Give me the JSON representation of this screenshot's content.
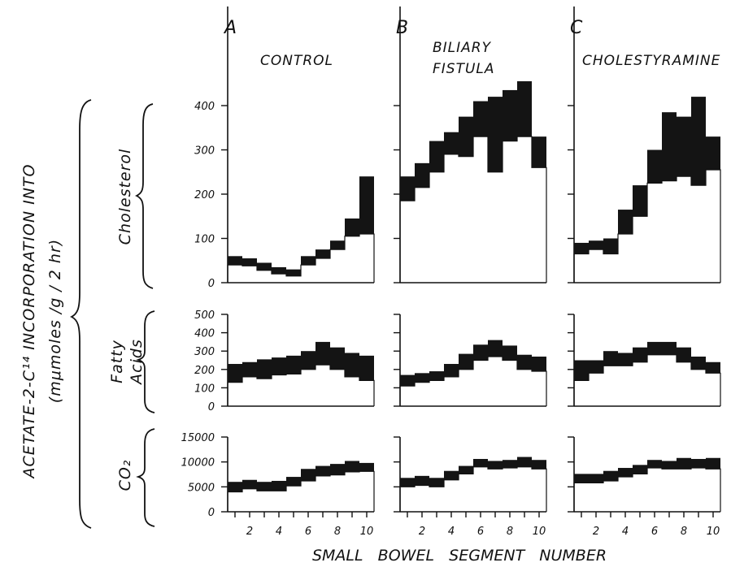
{
  "chart_data": [
    {
      "type": "area",
      "panel": "A",
      "row_label": "Cholesterol",
      "title": "CONTROL",
      "ylim": [
        0,
        400
      ],
      "yticks": [
        "0",
        "100",
        "200",
        "300",
        "400"
      ],
      "x": [
        1,
        2,
        3,
        4,
        5,
        6,
        7,
        8,
        9,
        10
      ],
      "lower": [
        40,
        38,
        28,
        20,
        15,
        40,
        55,
        75,
        105,
        110
      ],
      "upper": [
        60,
        55,
        45,
        35,
        30,
        60,
        75,
        95,
        145,
        240
      ]
    },
    {
      "type": "area",
      "panel": "B",
      "row_label": "Cholesterol",
      "title": "BILIARY FISTULA",
      "ylim": [
        0,
        400
      ],
      "x": [
        1,
        2,
        3,
        4,
        5,
        6,
        7,
        8,
        9,
        10
      ],
      "lower": [
        185,
        215,
        250,
        290,
        285,
        330,
        250,
        320,
        330,
        260
      ],
      "upper": [
        240,
        270,
        320,
        340,
        375,
        410,
        420,
        435,
        455,
        330
      ]
    },
    {
      "type": "area",
      "panel": "C",
      "row_label": "Cholesterol",
      "title": "CHOLESTYRAMINE",
      "ylim": [
        0,
        400
      ],
      "x": [
        1,
        2,
        3,
        4,
        5,
        6,
        7,
        8,
        9,
        10
      ],
      "lower": [
        65,
        75,
        65,
        110,
        150,
        225,
        230,
        240,
        220,
        255
      ],
      "upper": [
        90,
        95,
        100,
        165,
        220,
        300,
        385,
        375,
        420,
        330
      ]
    },
    {
      "type": "area",
      "panel": "A",
      "row_label": "Fatty Acids",
      "ylim": [
        0,
        500
      ],
      "yticks": [
        "0",
        "100",
        "200",
        "300",
        "400",
        "500"
      ],
      "x": [
        1,
        2,
        3,
        4,
        5,
        6,
        7,
        8,
        9,
        10
      ],
      "lower": [
        130,
        160,
        150,
        170,
        175,
        200,
        225,
        200,
        160,
        140
      ],
      "upper": [
        230,
        240,
        255,
        265,
        275,
        300,
        350,
        320,
        290,
        275
      ]
    },
    {
      "type": "area",
      "panel": "B",
      "row_label": "Fatty Acids",
      "ylim": [
        0,
        500
      ],
      "x": [
        1,
        2,
        3,
        4,
        5,
        6,
        7,
        8,
        9,
        10
      ],
      "lower": [
        110,
        130,
        140,
        160,
        200,
        250,
        270,
        250,
        200,
        190
      ],
      "upper": [
        170,
        180,
        190,
        230,
        285,
        335,
        360,
        330,
        280,
        270
      ]
    },
    {
      "type": "area",
      "panel": "C",
      "row_label": "Fatty Acids",
      "ylim": [
        0,
        500
      ],
      "x": [
        1,
        2,
        3,
        4,
        5,
        6,
        7,
        8,
        9,
        10
      ],
      "lower": [
        140,
        180,
        220,
        220,
        240,
        280,
        280,
        240,
        200,
        180
      ],
      "upper": [
        250,
        250,
        300,
        290,
        320,
        350,
        350,
        320,
        270,
        240
      ]
    },
    {
      "type": "area",
      "panel": "A",
      "row_label": "CO2",
      "ylim": [
        0,
        15000
      ],
      "yticks": [
        "0",
        "5000",
        "10000",
        "15000"
      ],
      "x": [
        1,
        2,
        3,
        4,
        5,
        6,
        7,
        8,
        9,
        10
      ],
      "lower": [
        4000,
        4600,
        4200,
        4200,
        5200,
        6200,
        7200,
        7400,
        8000,
        8100
      ],
      "upper": [
        6000,
        6400,
        6000,
        6200,
        7000,
        8600,
        9200,
        9600,
        10200,
        9800
      ]
    },
    {
      "type": "area",
      "panel": "B",
      "row_label": "CO2",
      "ylim": [
        0,
        15000
      ],
      "x": [
        1,
        2,
        3,
        4,
        5,
        6,
        7,
        8,
        9,
        10
      ],
      "lower": [
        5000,
        5300,
        5000,
        6400,
        7600,
        9000,
        8600,
        8800,
        9000,
        8600
      ],
      "upper": [
        6800,
        7200,
        6800,
        8200,
        9200,
        10600,
        10200,
        10400,
        11000,
        10400
      ]
    },
    {
      "type": "area",
      "panel": "C",
      "row_label": "CO2",
      "ylim": [
        0,
        15000
      ],
      "x": [
        1,
        2,
        3,
        4,
        5,
        6,
        7,
        8,
        9,
        10
      ],
      "lower": [
        5800,
        5800,
        6200,
        7000,
        7600,
        8800,
        8600,
        8600,
        8800,
        8600
      ],
      "upper": [
        7600,
        7600,
        8200,
        8800,
        9400,
        10400,
        10200,
        10800,
        10600,
        10800
      ]
    }
  ],
  "xtick_labels": [
    "2",
    "4",
    "6",
    "8",
    "10"
  ],
  "xlabel": "SMALL   BOWEL   SEGMENT   NUMBER",
  "ylabel_main": "ACETATE-2-C¹⁴ INCORPORATION INTO",
  "ylabel_units": "(mμmoles /g / 2 hr)",
  "panels": {
    "A": {
      "letter": "A",
      "title_lines": [
        "CONTROL"
      ]
    },
    "B": {
      "letter": "B",
      "title_lines": [
        "BILIARY",
        "FISTULA"
      ]
    },
    "C": {
      "letter": "C",
      "title_lines": [
        "CHOLESTYRAMINE"
      ]
    }
  },
  "rows": {
    "cholesterol": {
      "label": "Cholesterol"
    },
    "fatty_acids": {
      "label_lines": [
        "Fatty",
        "Acids"
      ]
    },
    "co2": {
      "label": "CO₂"
    }
  },
  "colors": {
    "ink": "#111111",
    "band": "#141414",
    "paper": "#ffffff"
  }
}
